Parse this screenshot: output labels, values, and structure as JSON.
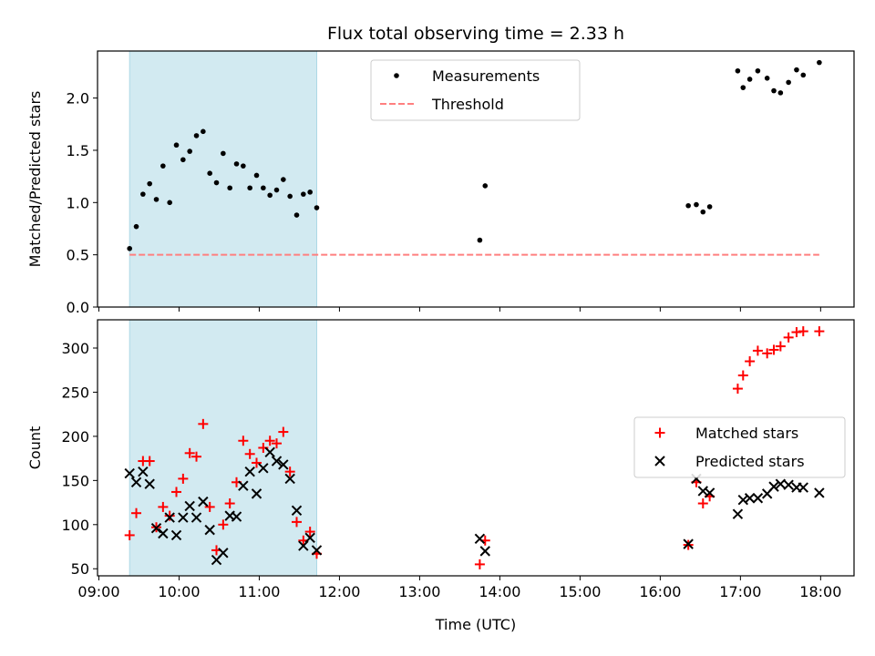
{
  "chart_data": [
    {
      "type": "scatter",
      "title": "Flux total observing time = 2.33 h",
      "xlabel": "",
      "ylabel": "Matched/Predicted stars",
      "ylim": [
        0,
        2.45
      ],
      "yticks": [
        0.0,
        0.5,
        1.0,
        1.5,
        2.0
      ],
      "ytick_labels": [
        "0.0",
        "0.5",
        "1.0",
        "1.5",
        "2.0"
      ],
      "shaded_region": {
        "x0": "09:23",
        "x1": "11:43",
        "color": "#add8e6"
      },
      "legend_position": "top-center",
      "series": [
        {
          "name": "Measurements",
          "kind": "dot",
          "color": "#000000",
          "points": [
            [
              "09:23",
              0.56
            ],
            [
              "09:28",
              0.77
            ],
            [
              "09:33",
              1.08
            ],
            [
              "09:38",
              1.18
            ],
            [
              "09:43",
              1.03
            ],
            [
              "09:48",
              1.35
            ],
            [
              "09:53",
              1.0
            ],
            [
              "09:58",
              1.55
            ],
            [
              "10:03",
              1.41
            ],
            [
              "10:08",
              1.49
            ],
            [
              "10:13",
              1.64
            ],
            [
              "10:18",
              1.68
            ],
            [
              "10:23",
              1.28
            ],
            [
              "10:28",
              1.19
            ],
            [
              "10:33",
              1.47
            ],
            [
              "10:38",
              1.14
            ],
            [
              "10:43",
              1.37
            ],
            [
              "10:48",
              1.35
            ],
            [
              "10:53",
              1.14
            ],
            [
              "10:58",
              1.26
            ],
            [
              "11:03",
              1.14
            ],
            [
              "11:08",
              1.07
            ],
            [
              "11:13",
              1.12
            ],
            [
              "11:18",
              1.22
            ],
            [
              "11:23",
              1.06
            ],
            [
              "11:28",
              0.88
            ],
            [
              "11:33",
              1.08
            ],
            [
              "11:38",
              1.1
            ],
            [
              "11:43",
              0.95
            ],
            [
              "13:45",
              0.64
            ],
            [
              "13:49",
              1.16
            ],
            [
              "16:21",
              0.97
            ],
            [
              "16:27",
              0.98
            ],
            [
              "16:32",
              0.91
            ],
            [
              "16:37",
              0.96
            ],
            [
              "16:58",
              2.26
            ],
            [
              "17:02",
              2.1
            ],
            [
              "17:07",
              2.18
            ],
            [
              "17:13",
              2.26
            ],
            [
              "17:20",
              2.19
            ],
            [
              "17:25",
              2.07
            ],
            [
              "17:30",
              2.05
            ],
            [
              "17:36",
              2.15
            ],
            [
              "17:42",
              2.27
            ],
            [
              "17:47",
              2.22
            ],
            [
              "17:59",
              2.34
            ]
          ]
        },
        {
          "name": "Threshold",
          "kind": "dashed-line",
          "color": "#ff7f7f",
          "points": [
            [
              "09:23",
              0.5
            ],
            [
              "17:59",
              0.5
            ]
          ]
        }
      ]
    },
    {
      "type": "scatter",
      "title": "",
      "xlabel": "Time (UTC)",
      "ylabel": "Count",
      "ylim": [
        42,
        332
      ],
      "yticks": [
        50,
        100,
        150,
        200,
        250,
        300
      ],
      "ytick_labels": [
        "50",
        "100",
        "150",
        "200",
        "250",
        "300"
      ],
      "shaded_region": {
        "x0": "09:23",
        "x1": "11:43",
        "color": "#add8e6"
      },
      "legend_position": "center-right",
      "series": [
        {
          "name": "Matched stars",
          "kind": "plus",
          "color": "#ff0000",
          "points": [
            [
              "09:23",
              88
            ],
            [
              "09:28",
              113
            ],
            [
              "09:33",
              172
            ],
            [
              "09:38",
              172
            ],
            [
              "09:43",
              97
            ],
            [
              "09:48",
              120
            ],
            [
              "09:53",
              110
            ],
            [
              "09:58",
              137
            ],
            [
              "10:03",
              152
            ],
            [
              "10:08",
              181
            ],
            [
              "10:13",
              177
            ],
            [
              "10:18",
              214
            ],
            [
              "10:23",
              120
            ],
            [
              "10:28",
              71
            ],
            [
              "10:33",
              100
            ],
            [
              "10:38",
              124
            ],
            [
              "10:43",
              148
            ],
            [
              "10:48",
              195
            ],
            [
              "10:53",
              180
            ],
            [
              "10:58",
              170
            ],
            [
              "11:03",
              187
            ],
            [
              "11:08",
              195
            ],
            [
              "11:13",
              192
            ],
            [
              "11:18",
              205
            ],
            [
              "11:23",
              160
            ],
            [
              "11:28",
              103
            ],
            [
              "11:33",
              82
            ],
            [
              "11:38",
              92
            ],
            [
              "11:43",
              67
            ],
            [
              "13:45",
              55
            ],
            [
              "13:49",
              82
            ],
            [
              "16:21",
              77
            ],
            [
              "16:27",
              148
            ],
            [
              "16:32",
              124
            ],
            [
              "16:37",
              132
            ],
            [
              "16:58",
              254
            ],
            [
              "17:02",
              269
            ],
            [
              "17:07",
              285
            ],
            [
              "17:13",
              297
            ],
            [
              "17:20",
              294
            ],
            [
              "17:25",
              298
            ],
            [
              "17:30",
              302
            ],
            [
              "17:36",
              312
            ],
            [
              "17:42",
              318
            ],
            [
              "17:47",
              319
            ],
            [
              "17:59",
              319
            ]
          ]
        },
        {
          "name": "Predicted stars",
          "kind": "x",
          "color": "#000000",
          "points": [
            [
              "09:23",
              158
            ],
            [
              "09:28",
              148
            ],
            [
              "09:33",
              160
            ],
            [
              "09:38",
              146
            ],
            [
              "09:43",
              96
            ],
            [
              "09:48",
              90
            ],
            [
              "09:53",
              108
            ],
            [
              "09:58",
              88
            ],
            [
              "10:03",
              108
            ],
            [
              "10:08",
              121
            ],
            [
              "10:13",
              108
            ],
            [
              "10:18",
              126
            ],
            [
              "10:23",
              94
            ],
            [
              "10:28",
              60
            ],
            [
              "10:33",
              68
            ],
            [
              "10:38",
              110
            ],
            [
              "10:43",
              109
            ],
            [
              "10:48",
              144
            ],
            [
              "10:53",
              160
            ],
            [
              "10:58",
              135
            ],
            [
              "11:03",
              164
            ],
            [
              "11:08",
              182
            ],
            [
              "11:13",
              172
            ],
            [
              "11:18",
              168
            ],
            [
              "11:23",
              152
            ],
            [
              "11:28",
              116
            ],
            [
              "11:33",
              76
            ],
            [
              "11:38",
              85
            ],
            [
              "11:43",
              71
            ],
            [
              "13:45",
              84
            ],
            [
              "13:49",
              70
            ],
            [
              "16:21",
              78
            ],
            [
              "16:27",
              152
            ],
            [
              "16:32",
              138
            ],
            [
              "16:37",
              136
            ],
            [
              "16:58",
              112
            ],
            [
              "17:02",
              128
            ],
            [
              "17:07",
              130
            ],
            [
              "17:13",
              130
            ],
            [
              "17:20",
              135
            ],
            [
              "17:25",
              143
            ],
            [
              "17:30",
              146
            ],
            [
              "17:36",
              145
            ],
            [
              "17:42",
              142
            ],
            [
              "17:47",
              142
            ],
            [
              "17:59",
              136
            ]
          ]
        }
      ]
    }
  ],
  "x_axis": {
    "range": [
      "08:59",
      "18:25"
    ],
    "ticks": [
      "09:00",
      "10:00",
      "11:00",
      "12:00",
      "13:00",
      "14:00",
      "15:00",
      "16:00",
      "17:00",
      "18:00"
    ],
    "tick_labels": [
      "09:00",
      "10:00",
      "11:00",
      "12:00",
      "13:00",
      "14:00",
      "15:00",
      "16:00",
      "17:00",
      "18:00"
    ]
  }
}
